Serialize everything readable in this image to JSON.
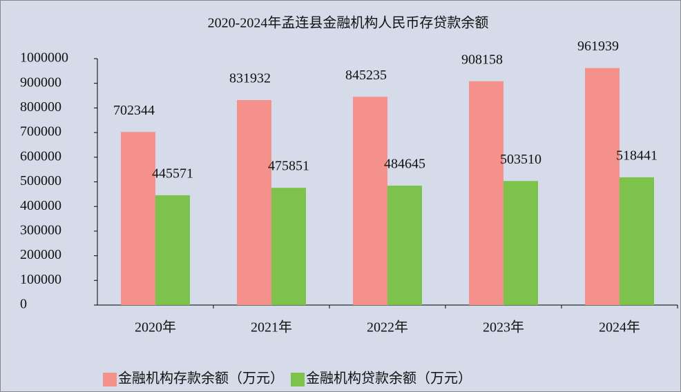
{
  "chart_data": {
    "type": "bar",
    "title": "2020-2024年孟连县金融机构人民币存贷款余额",
    "categories": [
      "2020年",
      "2021年",
      "2022年",
      "2023年",
      "2024年"
    ],
    "series": [
      {
        "name": "金融机构存款余额（万元）",
        "color": "#f4918a",
        "values": [
          702344,
          831932,
          845235,
          908158,
          961939
        ]
      },
      {
        "name": "金融机构贷款余额（万元）",
        "color": "#7dc24b",
        "values": [
          445571,
          475851,
          484645,
          503510,
          518441
        ]
      }
    ],
    "ylim": [
      0,
      1000000
    ],
    "yticks": [
      0,
      100000,
      200000,
      300000,
      400000,
      500000,
      600000,
      700000,
      800000,
      900000,
      1000000
    ],
    "legend": "bottom"
  }
}
